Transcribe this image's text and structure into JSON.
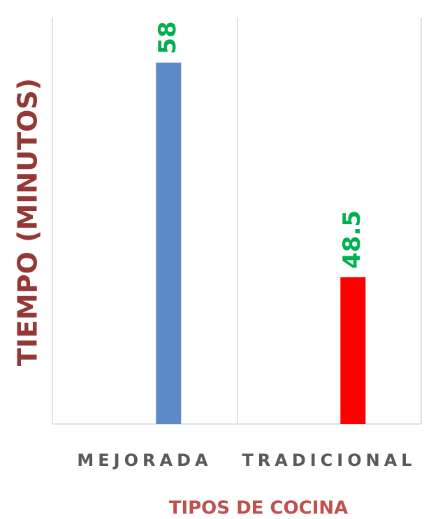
{
  "chart_data": {
    "type": "bar",
    "x_label": "TIPOS DE COCINA",
    "y_label": "TIEMPO  (MINUTOS)",
    "categories": [
      "MEJORADA",
      "TRADICIONAL"
    ],
    "values": [
      58,
      48.5
    ],
    "colors": [
      "#5b8ac6",
      "#ff0000"
    ],
    "label_color": "#00b050",
    "ylim": [
      42,
      60
    ]
  }
}
